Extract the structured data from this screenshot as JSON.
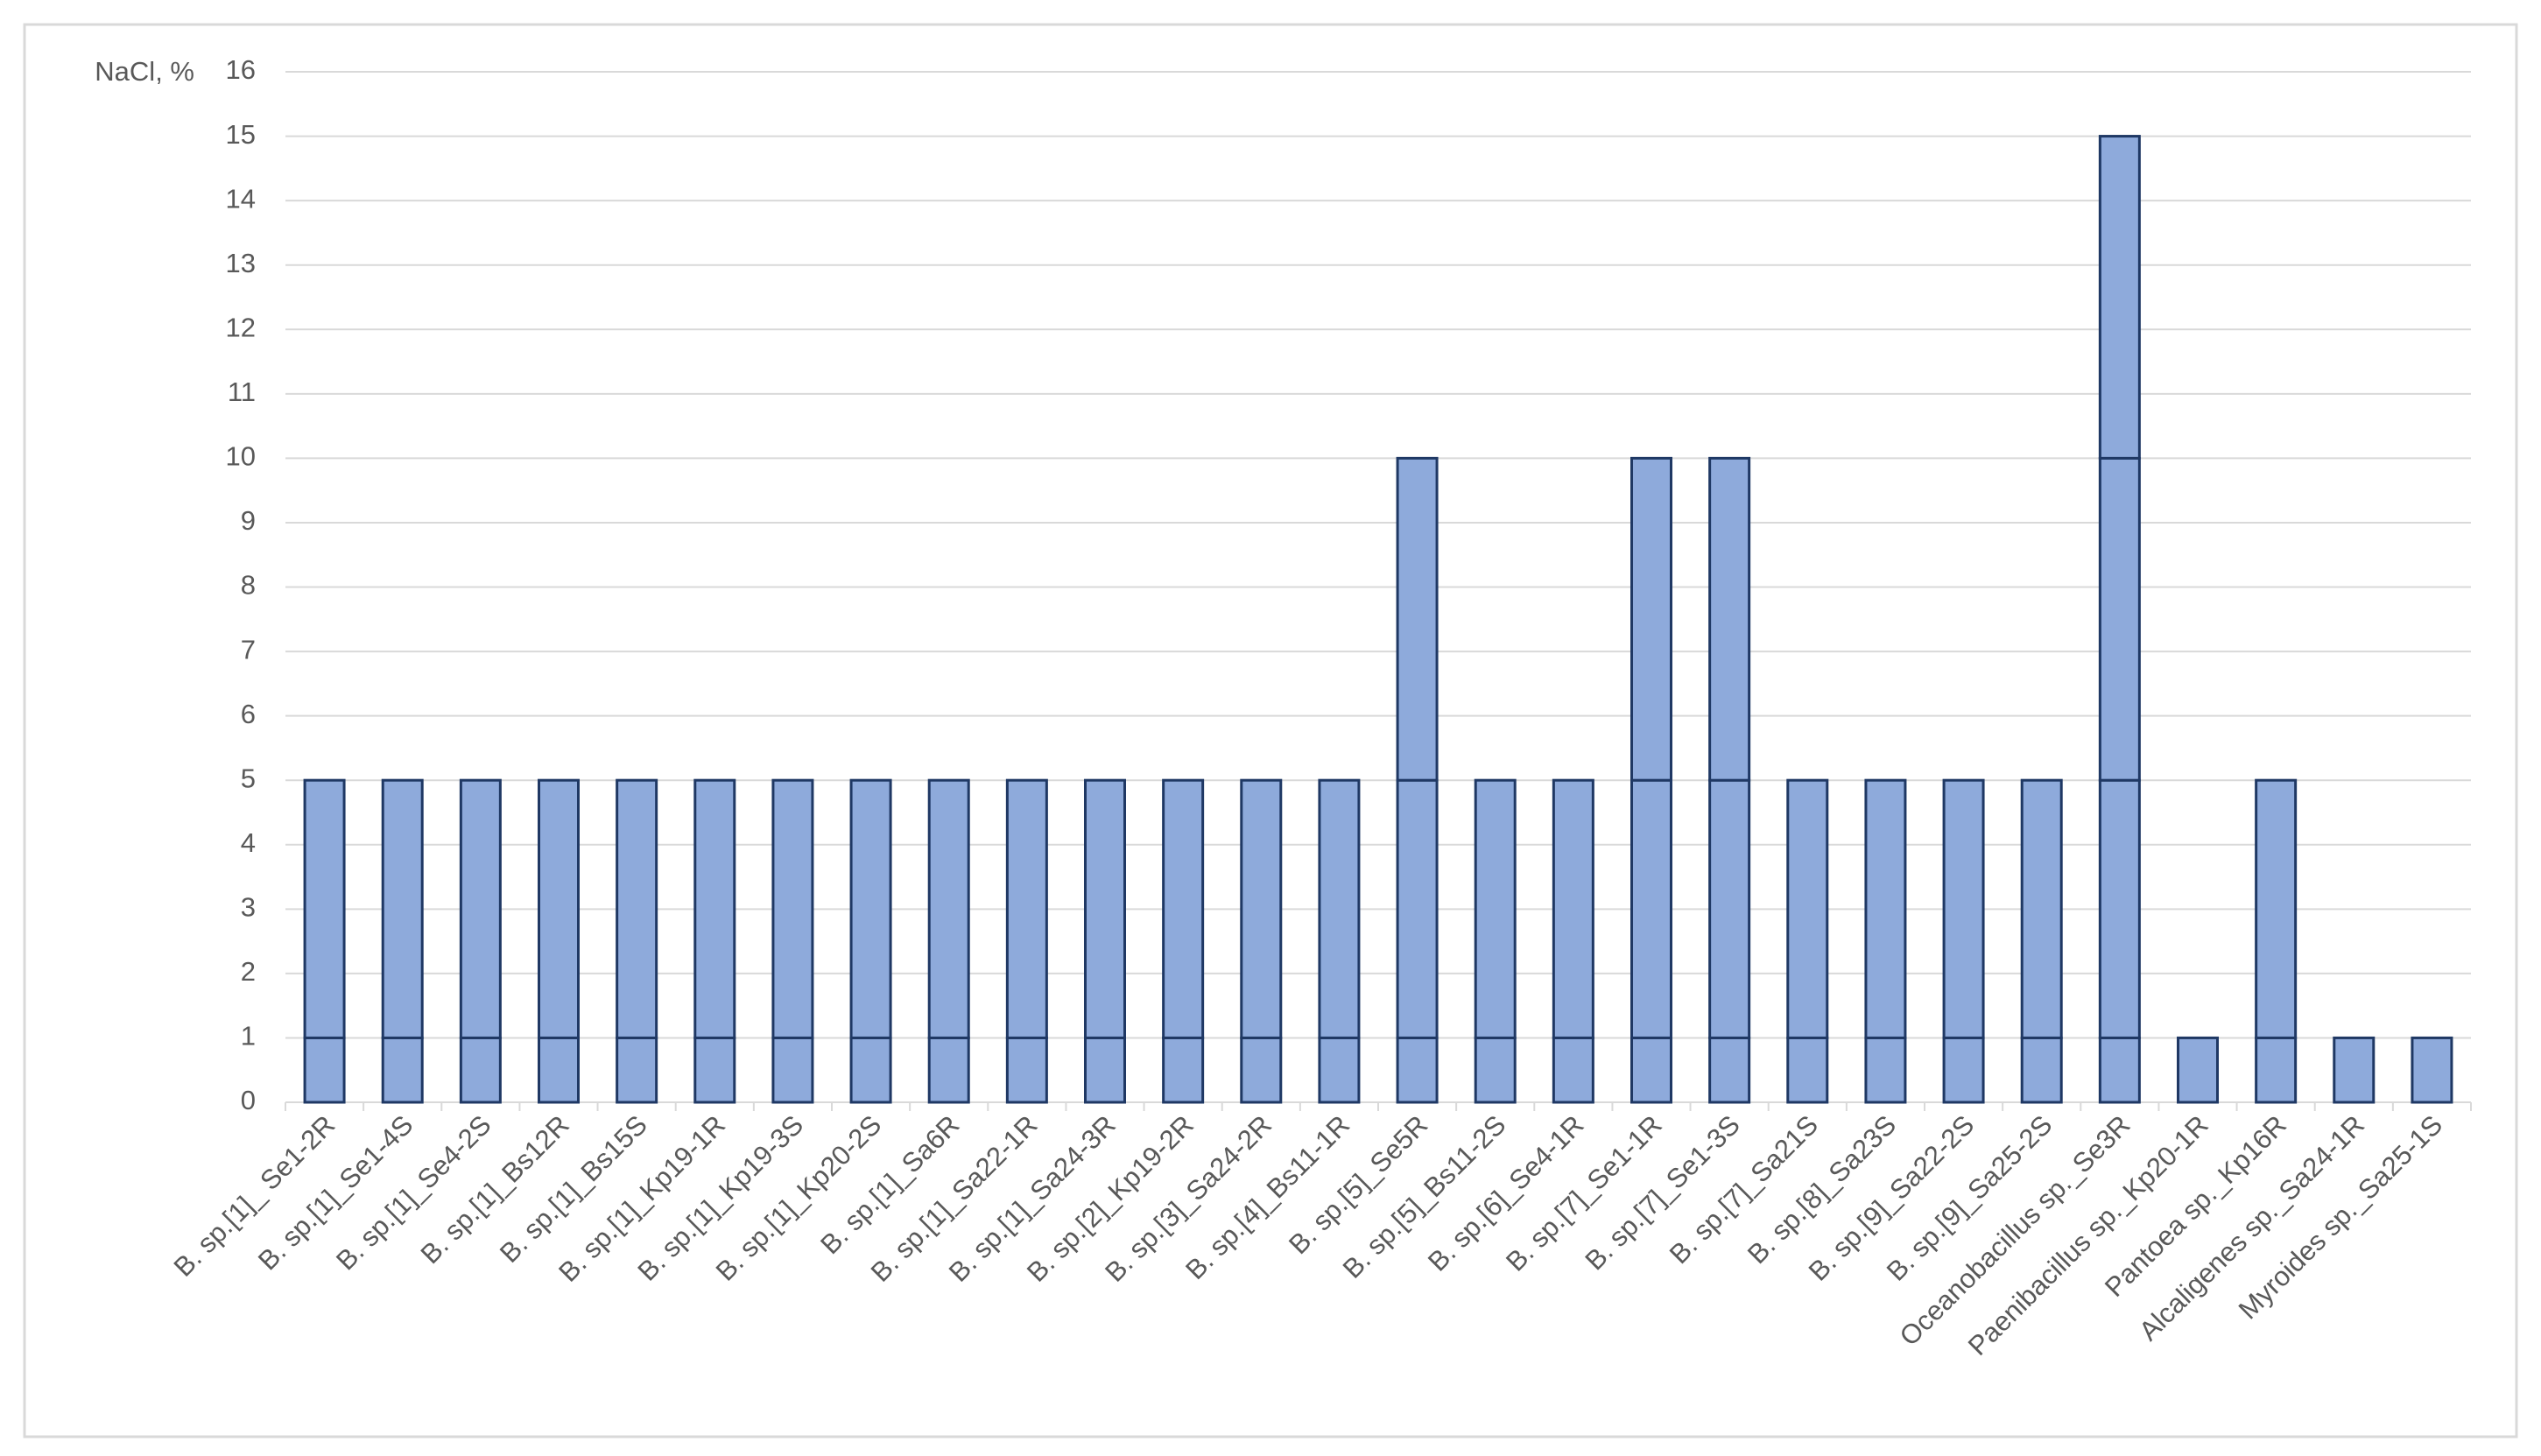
{
  "chart_data": {
    "type": "bar",
    "stacked": true,
    "y_label": "NaCl, %",
    "categories": [
      "B. sp.[1]_ Se1-2R",
      "B. sp.[1]_Se1-4S",
      "B. sp.[1]_Se4-2S",
      "B. sp.[1]_Bs12R",
      "B. sp.[1]_Bs15S",
      "B. sp.[1]_Kp19-1R",
      "B. sp.[1]_Kp19-3S",
      "B. sp.[1]_Kp20-2S",
      "B. sp.[1]_Sa6R",
      "B. sp.[1]_Sa22-1R",
      "B. sp.[1]_Sa24-3R",
      "B. sp.[2]_Kp19-2R",
      "B. sp.[3]_Sa24-2R",
      "B. sp.[4]_Bs11-1R",
      "B. sp.[5]_Se5R",
      "B. sp.[5]_Bs11-2S",
      "B. sp.[6]_Se4-1R",
      "B. sp.[7]_Se1-1R",
      "B. sp.[7]_Se1-3S",
      "B. sp.[7]_Sa21S",
      "B. sp.[8]_Sa23S",
      "B. sp.[9]_Sa22-2S",
      "B. sp.[9]_Sa25-2S",
      "Oceanobacillus sp._Se3R",
      "Paenibacillus sp._Kp20-1R",
      "Pantoea sp._Kp16R",
      "Alcaligenes sp._Sa24-1R",
      "Myroides sp._Sa25-1S"
    ],
    "series": [
      {
        "color": "#8eaadb",
        "values": [
          1,
          1,
          1,
          1,
          1,
          1,
          1,
          1,
          1,
          1,
          1,
          1,
          1,
          1,
          1,
          1,
          1,
          1,
          1,
          1,
          1,
          1,
          1,
          1,
          1,
          1,
          1,
          1
        ]
      },
      {
        "color": "#8eaadb",
        "values": [
          4,
          4,
          4,
          4,
          4,
          4,
          4,
          4,
          4,
          4,
          4,
          4,
          4,
          4,
          4,
          4,
          4,
          4,
          4,
          4,
          4,
          4,
          4,
          4,
          null,
          4,
          null,
          null
        ]
      },
      {
        "color": "#8eaadb",
        "values": [
          null,
          null,
          null,
          null,
          null,
          null,
          null,
          null,
          null,
          null,
          null,
          null,
          null,
          null,
          5,
          null,
          null,
          5,
          5,
          null,
          null,
          null,
          null,
          5,
          null,
          null,
          null,
          null
        ]
      },
      {
        "color": "#8eaadb",
        "values": [
          null,
          null,
          null,
          null,
          null,
          null,
          null,
          null,
          null,
          null,
          null,
          null,
          null,
          null,
          null,
          null,
          null,
          null,
          null,
          null,
          null,
          null,
          null,
          5,
          null,
          null,
          null,
          null
        ]
      }
    ],
    "edge_color": "#1f3864",
    "ylim": [
      0,
      16
    ],
    "yticks": [
      0,
      1,
      2,
      3,
      4,
      5,
      6,
      7,
      8,
      9,
      10,
      11,
      12,
      13,
      14,
      15,
      16
    ],
    "grid": true
  }
}
